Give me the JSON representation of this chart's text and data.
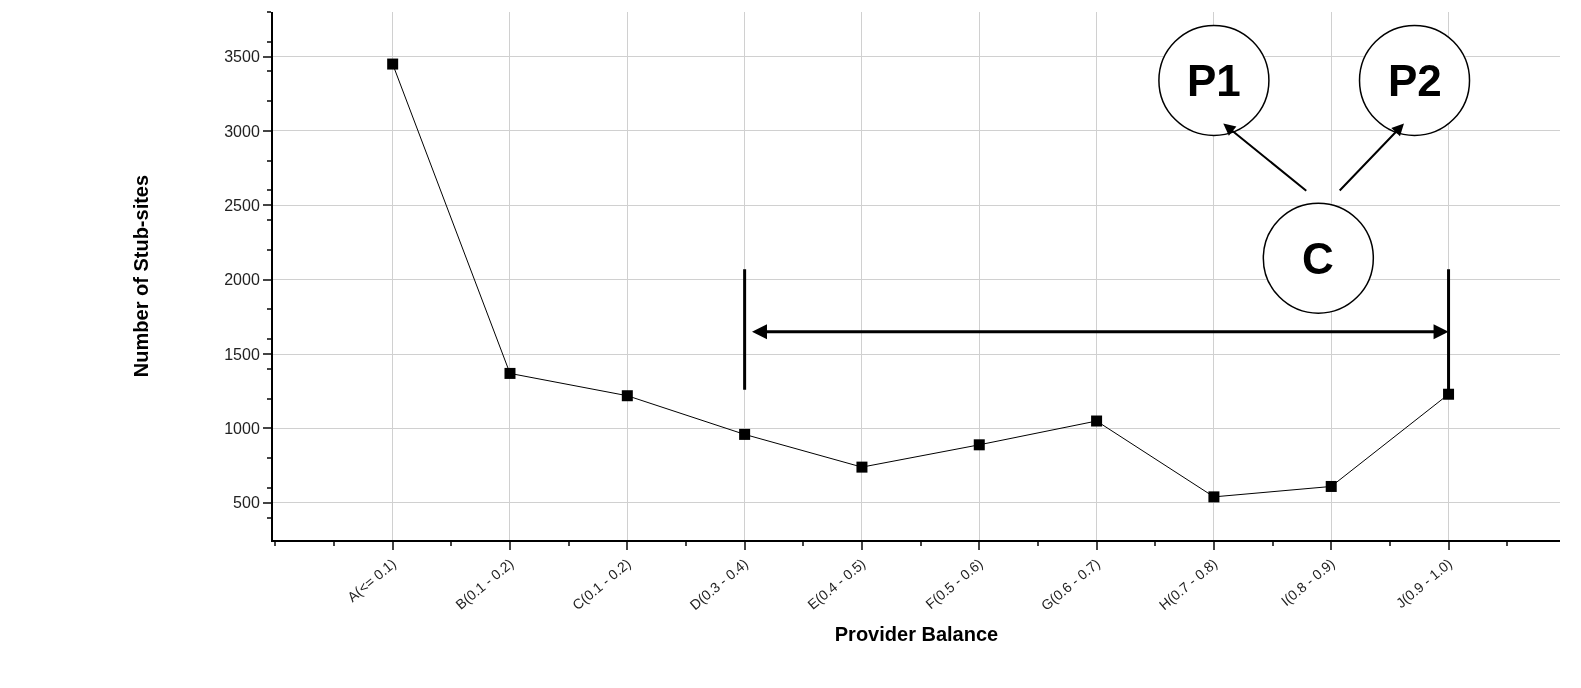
{
  "chart_data": {
    "type": "line",
    "xlabel": "Provider Balance",
    "ylabel": "Number of Stub-sites",
    "categories": [
      "A(<= 0.1)",
      "B(0.1 - 0.2)",
      "C(0.1 - 0.2)",
      "D(0.3 - 0.4)",
      "E(0.4 - 0.5)",
      "F(0.5 - 0.6)",
      "G(0.6 - 0.7)",
      "H(0.7 - 0.8)",
      "I(0.8 - 0.9)",
      "J(0.9 - 1.0)"
    ],
    "series": [
      {
        "color": "#000000",
        "values": [
          3450,
          1370,
          1220,
          960,
          740,
          890,
          1050,
          540,
          610,
          1230
        ]
      }
    ],
    "ylim": [
      250,
      3800
    ],
    "yticks": [
      500,
      1000,
      1500,
      2000,
      2500,
      3000,
      3500
    ],
    "grid": true,
    "marker": "square",
    "line_style": "solid",
    "annotations": [
      "P1",
      "P2",
      "C"
    ]
  }
}
